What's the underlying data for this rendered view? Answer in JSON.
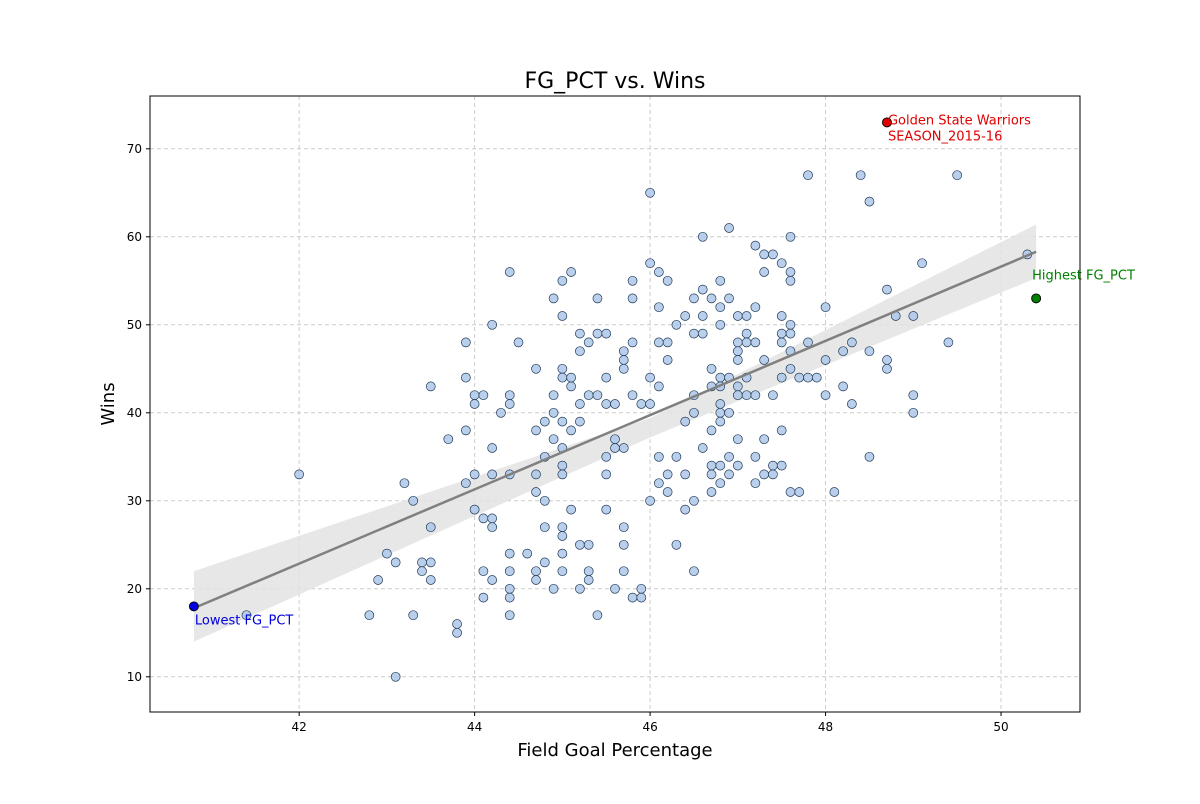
{
  "chart_data": {
    "type": "scatter",
    "title": "FG_PCT vs. Wins",
    "xlabel": "Field Goal Percentage",
    "ylabel": "Wins",
    "xlim": [
      40.3,
      50.9
    ],
    "ylim": [
      6,
      76
    ],
    "xticks": [
      42,
      44,
      46,
      48,
      50
    ],
    "yticks": [
      10,
      20,
      30,
      40,
      50,
      60,
      70
    ],
    "grid": true,
    "colors": {
      "points_fill": "#aec7e8",
      "points_stroke": "#1f3b57",
      "trend": "#808080",
      "band": "#e3e3e3",
      "highlight_max_wins": "#e00000",
      "highlight_max_fg": "#008000",
      "highlight_min_fg": "#0000e0",
      "grid": "#cccccc"
    },
    "trendline": {
      "x": [
        40.8,
        50.4
      ],
      "y": [
        17.8,
        58.3
      ]
    },
    "confidence_band": {
      "x": [
        40.8,
        46.0,
        50.4
      ],
      "lower": [
        14.0,
        37.2,
        55.3
      ],
      "upper": [
        22.0,
        39.4,
        61.4
      ]
    },
    "annotations": [
      {
        "label_lines": [
          "Golden State Warriors",
          "SEASON_2015-16"
        ],
        "x": 48.7,
        "y": 73,
        "color": "#e00000"
      },
      {
        "label_lines": [
          "Highest FG_PCT"
        ],
        "x": 50.4,
        "y": 53,
        "color": "#008000"
      },
      {
        "label_lines": [
          "Lowest FG_PCT"
        ],
        "x": 40.8,
        "y": 18,
        "color": "#0000e0"
      }
    ],
    "points": [
      [
        41.4,
        17
      ],
      [
        42.0,
        33
      ],
      [
        42.8,
        17
      ],
      [
        42.9,
        21
      ],
      [
        43.0,
        24
      ],
      [
        43.1,
        23
      ],
      [
        43.1,
        10
      ],
      [
        43.2,
        32
      ],
      [
        43.3,
        30
      ],
      [
        43.3,
        17
      ],
      [
        43.4,
        23
      ],
      [
        43.4,
        22
      ],
      [
        43.5,
        43
      ],
      [
        43.5,
        27
      ],
      [
        43.5,
        23
      ],
      [
        43.5,
        21
      ],
      [
        43.7,
        37
      ],
      [
        43.8,
        16
      ],
      [
        43.8,
        15
      ],
      [
        43.9,
        48
      ],
      [
        43.9,
        44
      ],
      [
        43.9,
        38
      ],
      [
        43.9,
        32
      ],
      [
        44.0,
        42
      ],
      [
        44.0,
        41
      ],
      [
        44.0,
        33
      ],
      [
        44.0,
        29
      ],
      [
        44.1,
        42
      ],
      [
        44.1,
        28
      ],
      [
        44.1,
        22
      ],
      [
        44.1,
        19
      ],
      [
        44.2,
        50
      ],
      [
        44.2,
        36
      ],
      [
        44.2,
        33
      ],
      [
        44.2,
        28
      ],
      [
        44.2,
        27
      ],
      [
        44.2,
        21
      ],
      [
        44.3,
        40
      ],
      [
        44.4,
        56
      ],
      [
        44.4,
        42
      ],
      [
        44.4,
        41
      ],
      [
        44.4,
        33
      ],
      [
        44.4,
        24
      ],
      [
        44.4,
        22
      ],
      [
        44.4,
        20
      ],
      [
        44.4,
        19
      ],
      [
        44.4,
        17
      ],
      [
        44.5,
        48
      ],
      [
        44.6,
        24
      ],
      [
        44.7,
        45
      ],
      [
        44.7,
        38
      ],
      [
        44.7,
        33
      ],
      [
        44.7,
        31
      ],
      [
        44.7,
        22
      ],
      [
        44.7,
        21
      ],
      [
        44.8,
        39
      ],
      [
        44.8,
        35
      ],
      [
        44.8,
        30
      ],
      [
        44.8,
        27
      ],
      [
        44.8,
        23
      ],
      [
        44.9,
        53
      ],
      [
        44.9,
        42
      ],
      [
        44.9,
        40
      ],
      [
        44.9,
        37
      ],
      [
        44.9,
        20
      ],
      [
        45.0,
        55
      ],
      [
        45.0,
        51
      ],
      [
        45.0,
        45
      ],
      [
        45.0,
        44
      ],
      [
        45.0,
        39
      ],
      [
        45.0,
        36
      ],
      [
        45.0,
        34
      ],
      [
        45.0,
        33
      ],
      [
        45.0,
        27
      ],
      [
        45.0,
        26
      ],
      [
        45.0,
        24
      ],
      [
        45.0,
        22
      ],
      [
        45.1,
        56
      ],
      [
        45.1,
        44
      ],
      [
        45.1,
        43
      ],
      [
        45.1,
        38
      ],
      [
        45.1,
        29
      ],
      [
        45.2,
        49
      ],
      [
        45.2,
        47
      ],
      [
        45.2,
        41
      ],
      [
        45.2,
        39
      ],
      [
        45.2,
        25
      ],
      [
        45.2,
        20
      ],
      [
        45.3,
        48
      ],
      [
        45.3,
        42
      ],
      [
        45.3,
        25
      ],
      [
        45.3,
        22
      ],
      [
        45.3,
        21
      ],
      [
        45.4,
        53
      ],
      [
        45.4,
        49
      ],
      [
        45.4,
        42
      ],
      [
        45.4,
        17
      ],
      [
        45.5,
        49
      ],
      [
        45.5,
        44
      ],
      [
        45.5,
        41
      ],
      [
        45.5,
        35
      ],
      [
        45.5,
        33
      ],
      [
        45.5,
        29
      ],
      [
        45.6,
        41
      ],
      [
        45.6,
        37
      ],
      [
        45.6,
        36
      ],
      [
        45.6,
        20
      ],
      [
        45.7,
        47
      ],
      [
        45.7,
        46
      ],
      [
        45.7,
        45
      ],
      [
        45.7,
        36
      ],
      [
        45.7,
        27
      ],
      [
        45.7,
        25
      ],
      [
        45.7,
        22
      ],
      [
        45.8,
        55
      ],
      [
        45.8,
        53
      ],
      [
        45.8,
        48
      ],
      [
        45.8,
        42
      ],
      [
        45.8,
        19
      ],
      [
        45.9,
        41
      ],
      [
        45.9,
        20
      ],
      [
        45.9,
        19
      ],
      [
        46.0,
        65
      ],
      [
        46.0,
        57
      ],
      [
        46.0,
        44
      ],
      [
        46.0,
        41
      ],
      [
        46.0,
        30
      ],
      [
        46.1,
        56
      ],
      [
        46.1,
        52
      ],
      [
        46.1,
        48
      ],
      [
        46.1,
        43
      ],
      [
        46.1,
        35
      ],
      [
        46.1,
        32
      ],
      [
        46.2,
        55
      ],
      [
        46.2,
        48
      ],
      [
        46.2,
        46
      ],
      [
        46.2,
        33
      ],
      [
        46.2,
        31
      ],
      [
        46.3,
        50
      ],
      [
        46.3,
        35
      ],
      [
        46.3,
        25
      ],
      [
        46.4,
        51
      ],
      [
        46.4,
        39
      ],
      [
        46.4,
        33
      ],
      [
        46.4,
        29
      ],
      [
        46.5,
        53
      ],
      [
        46.5,
        49
      ],
      [
        46.5,
        42
      ],
      [
        46.5,
        40
      ],
      [
        46.5,
        30
      ],
      [
        46.5,
        22
      ],
      [
        46.6,
        60
      ],
      [
        46.6,
        54
      ],
      [
        46.6,
        51
      ],
      [
        46.6,
        49
      ],
      [
        46.6,
        36
      ],
      [
        46.7,
        53
      ],
      [
        46.7,
        45
      ],
      [
        46.7,
        43
      ],
      [
        46.7,
        38
      ],
      [
        46.7,
        34
      ],
      [
        46.7,
        33
      ],
      [
        46.7,
        31
      ],
      [
        46.8,
        55
      ],
      [
        46.8,
        52
      ],
      [
        46.8,
        50
      ],
      [
        46.8,
        44
      ],
      [
        46.8,
        43
      ],
      [
        46.8,
        41
      ],
      [
        46.8,
        40
      ],
      [
        46.8,
        39
      ],
      [
        46.8,
        34
      ],
      [
        46.8,
        32
      ],
      [
        46.9,
        61
      ],
      [
        46.9,
        53
      ],
      [
        46.9,
        44
      ],
      [
        46.9,
        40
      ],
      [
        46.9,
        35
      ],
      [
        46.9,
        33
      ],
      [
        47.0,
        51
      ],
      [
        47.0,
        48
      ],
      [
        47.0,
        47
      ],
      [
        47.0,
        46
      ],
      [
        47.0,
        43
      ],
      [
        47.0,
        42
      ],
      [
        47.0,
        37
      ],
      [
        47.0,
        34
      ],
      [
        47.1,
        51
      ],
      [
        47.1,
        49
      ],
      [
        47.1,
        48
      ],
      [
        47.1,
        44
      ],
      [
        47.1,
        42
      ],
      [
        47.2,
        59
      ],
      [
        47.2,
        52
      ],
      [
        47.2,
        48
      ],
      [
        47.2,
        42
      ],
      [
        47.2,
        35
      ],
      [
        47.2,
        32
      ],
      [
        47.3,
        58
      ],
      [
        47.3,
        56
      ],
      [
        47.3,
        46
      ],
      [
        47.3,
        37
      ],
      [
        47.3,
        33
      ],
      [
        47.4,
        58
      ],
      [
        47.4,
        42
      ],
      [
        47.4,
        34
      ],
      [
        47.4,
        33
      ],
      [
        47.5,
        57
      ],
      [
        47.5,
        51
      ],
      [
        47.5,
        49
      ],
      [
        47.5,
        48
      ],
      [
        47.5,
        44
      ],
      [
        47.5,
        38
      ],
      [
        47.5,
        34
      ],
      [
        47.6,
        60
      ],
      [
        47.6,
        56
      ],
      [
        47.6,
        55
      ],
      [
        47.6,
        50
      ],
      [
        47.6,
        49
      ],
      [
        47.6,
        47
      ],
      [
        47.6,
        45
      ],
      [
        47.6,
        31
      ],
      [
        47.7,
        44
      ],
      [
        47.7,
        31
      ],
      [
        47.8,
        67
      ],
      [
        47.8,
        48
      ],
      [
        47.8,
        44
      ],
      [
        47.9,
        44
      ],
      [
        48.0,
        52
      ],
      [
        48.0,
        46
      ],
      [
        48.0,
        42
      ],
      [
        48.1,
        31
      ],
      [
        48.2,
        47
      ],
      [
        48.2,
        43
      ],
      [
        48.3,
        48
      ],
      [
        48.3,
        41
      ],
      [
        48.4,
        67
      ],
      [
        48.5,
        64
      ],
      [
        48.5,
        47
      ],
      [
        48.5,
        35
      ],
      [
        48.7,
        54
      ],
      [
        48.7,
        46
      ],
      [
        48.7,
        45
      ],
      [
        48.8,
        51
      ],
      [
        49.0,
        51
      ],
      [
        49.0,
        42
      ],
      [
        49.0,
        40
      ],
      [
        49.1,
        57
      ],
      [
        49.4,
        48
      ],
      [
        49.5,
        67
      ],
      [
        50.3,
        58
      ]
    ]
  }
}
